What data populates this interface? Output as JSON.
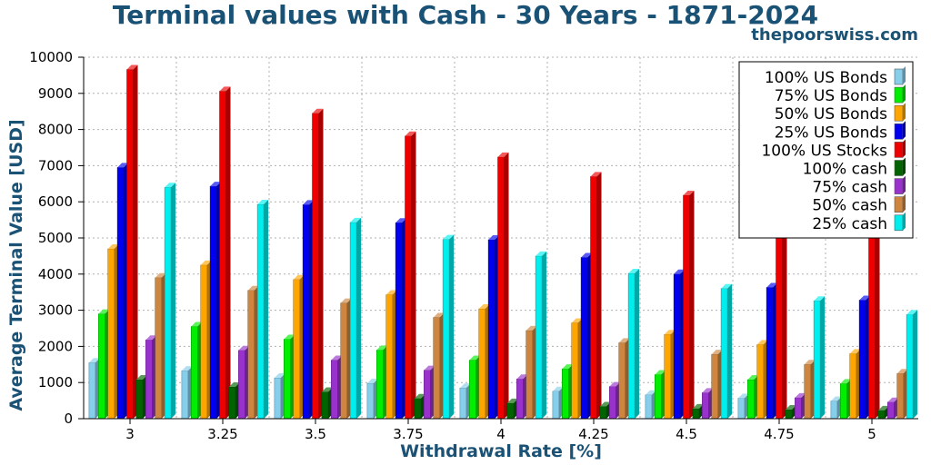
{
  "title": "Terminal values with Cash - 30 Years - 1871-2024",
  "site": "thepoorswiss.com",
  "chart_data": {
    "type": "bar",
    "title": "Terminal values with Cash - 30 Years - 1871-2024",
    "xlabel": "Withdrawal Rate [%]",
    "ylabel": "Average Terminal Value [USD]",
    "ylim": [
      0,
      10000
    ],
    "yticks": [
      0,
      1000,
      2000,
      3000,
      4000,
      5000,
      6000,
      7000,
      8000,
      9000,
      10000
    ],
    "grid": true,
    "legend_position": "top-right",
    "categories": [
      "3",
      "3.25",
      "3.5",
      "3.75",
      "4",
      "4.25",
      "4.5",
      "4.75",
      "5"
    ],
    "series": [
      {
        "name": "100% US Bonds",
        "color": "#87ceeb",
        "values": [
          1550,
          1330,
          1130,
          980,
          850,
          760,
          660,
          570,
          490
        ]
      },
      {
        "name": "75% US Bonds",
        "color": "#00ee00",
        "values": [
          2900,
          2550,
          2200,
          1900,
          1620,
          1380,
          1220,
          1080,
          970
        ]
      },
      {
        "name": "50% US Bonds",
        "color": "#ffa500",
        "values": [
          4700,
          4250,
          3850,
          3430,
          3040,
          2650,
          2330,
          2050,
          1800
        ]
      },
      {
        "name": "25% US Bonds",
        "color": "#0000ee",
        "values": [
          6950,
          6430,
          5920,
          5420,
          4950,
          4460,
          4000,
          3630,
          3280
        ]
      },
      {
        "name": "100% US Stocks",
        "color": "#ee0000",
        "values": [
          9660,
          9060,
          8450,
          7820,
          7240,
          6700,
          6180,
          5720,
          5280
        ]
      },
      {
        "name": "100% cash",
        "color": "#006400",
        "values": [
          1080,
          880,
          740,
          560,
          430,
          340,
          280,
          250,
          230
        ]
      },
      {
        "name": "75% cash",
        "color": "#9932cc",
        "values": [
          2180,
          1890,
          1620,
          1340,
          1100,
          890,
          720,
          580,
          460
        ]
      },
      {
        "name": "50% cash",
        "color": "#cd853f",
        "values": [
          3900,
          3550,
          3200,
          2800,
          2440,
          2100,
          1780,
          1500,
          1250
        ]
      },
      {
        "name": "25% cash",
        "color": "#00eeee",
        "values": [
          6400,
          5930,
          5430,
          4960,
          4500,
          4020,
          3600,
          3260,
          2880
        ]
      }
    ]
  }
}
